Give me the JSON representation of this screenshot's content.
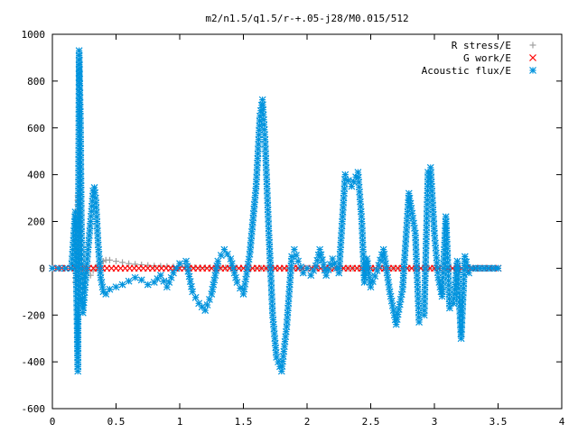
{
  "chart_data": {
    "type": "scatter",
    "title": "m2/n1.5/q1.5/r-+.05-j28/M0.015/512",
    "xlabel": "",
    "ylabel": "",
    "xlim": [
      0,
      4
    ],
    "ylim": [
      -600,
      1000
    ],
    "xticks": [
      "0",
      "0.5",
      "1",
      "1.5",
      "2",
      "2.5",
      "3",
      "3.5",
      "4"
    ],
    "yticks": [
      "1000",
      "800",
      "600",
      "400",
      "200",
      "0",
      "-200",
      "-400",
      "-600"
    ],
    "grid": false,
    "legend_position": "top-right",
    "series": [
      {
        "name": "R stress/E",
        "marker": "plus",
        "color": "#a0a0a0",
        "x": [
          0.18,
          0.2,
          0.22,
          0.24,
          0.26,
          0.28,
          0.3,
          0.32,
          0.34,
          0.36,
          0.38,
          0.4,
          0.42,
          0.45,
          0.5,
          0.55,
          0.6,
          0.7,
          0.8,
          0.9,
          1.0,
          1.2,
          1.4,
          1.6,
          1.8,
          2.0,
          2.2,
          2.4,
          2.6,
          2.8,
          3.0,
          3.2,
          3.4,
          3.5
        ],
        "y": [
          -60,
          310,
          160,
          -90,
          -40,
          -20,
          -30,
          -10,
          5,
          15,
          25,
          30,
          35,
          35,
          30,
          25,
          20,
          15,
          10,
          8,
          5,
          3,
          2,
          0,
          0,
          0,
          0,
          0,
          0,
          0,
          0,
          0,
          0,
          0
        ]
      },
      {
        "name": "G work/E",
        "marker": "cross",
        "color": "#ff0000",
        "x": [
          0,
          0.5,
          1,
          1.5,
          2,
          2.5,
          3,
          3.5
        ],
        "y": [
          0,
          0,
          0,
          0,
          0,
          0,
          0,
          0
        ]
      },
      {
        "name": "Acoustic flux/E",
        "marker": "star",
        "color": "#0093dd",
        "x": [
          0.0,
          0.05,
          0.1,
          0.15,
          0.18,
          0.2,
          0.21,
          0.22,
          0.23,
          0.24,
          0.26,
          0.28,
          0.3,
          0.32,
          0.33,
          0.34,
          0.36,
          0.38,
          0.4,
          0.42,
          0.45,
          0.5,
          0.55,
          0.6,
          0.65,
          0.7,
          0.75,
          0.8,
          0.85,
          0.9,
          0.95,
          1.0,
          1.05,
          1.1,
          1.15,
          1.2,
          1.25,
          1.3,
          1.35,
          1.4,
          1.45,
          1.5,
          1.55,
          1.6,
          1.63,
          1.65,
          1.67,
          1.7,
          1.73,
          1.76,
          1.8,
          1.84,
          1.88,
          1.9,
          1.93,
          1.97,
          2.0,
          2.03,
          2.07,
          2.1,
          2.15,
          2.2,
          2.25,
          2.3,
          2.35,
          2.4,
          2.43,
          2.45,
          2.47,
          2.5,
          2.55,
          2.6,
          2.65,
          2.7,
          2.75,
          2.8,
          2.85,
          2.88,
          2.92,
          2.95,
          2.97,
          3.0,
          3.03,
          3.06,
          3.09,
          3.12,
          3.15,
          3.18,
          3.21,
          3.24,
          3.27,
          3.3,
          3.33,
          3.36,
          3.39,
          3.42,
          3.45,
          3.48,
          3.5
        ],
        "y": [
          0,
          0,
          0,
          0,
          240,
          -440,
          930,
          630,
          40,
          -190,
          -60,
          80,
          200,
          330,
          345,
          300,
          100,
          -40,
          -100,
          -110,
          -90,
          -80,
          -70,
          -55,
          -40,
          -50,
          -70,
          -60,
          -30,
          -80,
          -20,
          20,
          30,
          -100,
          -150,
          -180,
          -110,
          30,
          80,
          40,
          -60,
          -110,
          60,
          350,
          650,
          720,
          550,
          150,
          -200,
          -380,
          -440,
          -250,
          50,
          80,
          30,
          -20,
          0,
          -30,
          10,
          80,
          -30,
          40,
          -20,
          400,
          350,
          410,
          200,
          -60,
          40,
          -80,
          -10,
          80,
          -100,
          -240,
          -90,
          320,
          150,
          -230,
          -200,
          410,
          430,
          150,
          -40,
          -120,
          220,
          -170,
          -150,
          30,
          -300,
          50,
          -20,
          0,
          0,
          0,
          0,
          0,
          0,
          0,
          0
        ],
        "note": ""
      }
    ]
  }
}
